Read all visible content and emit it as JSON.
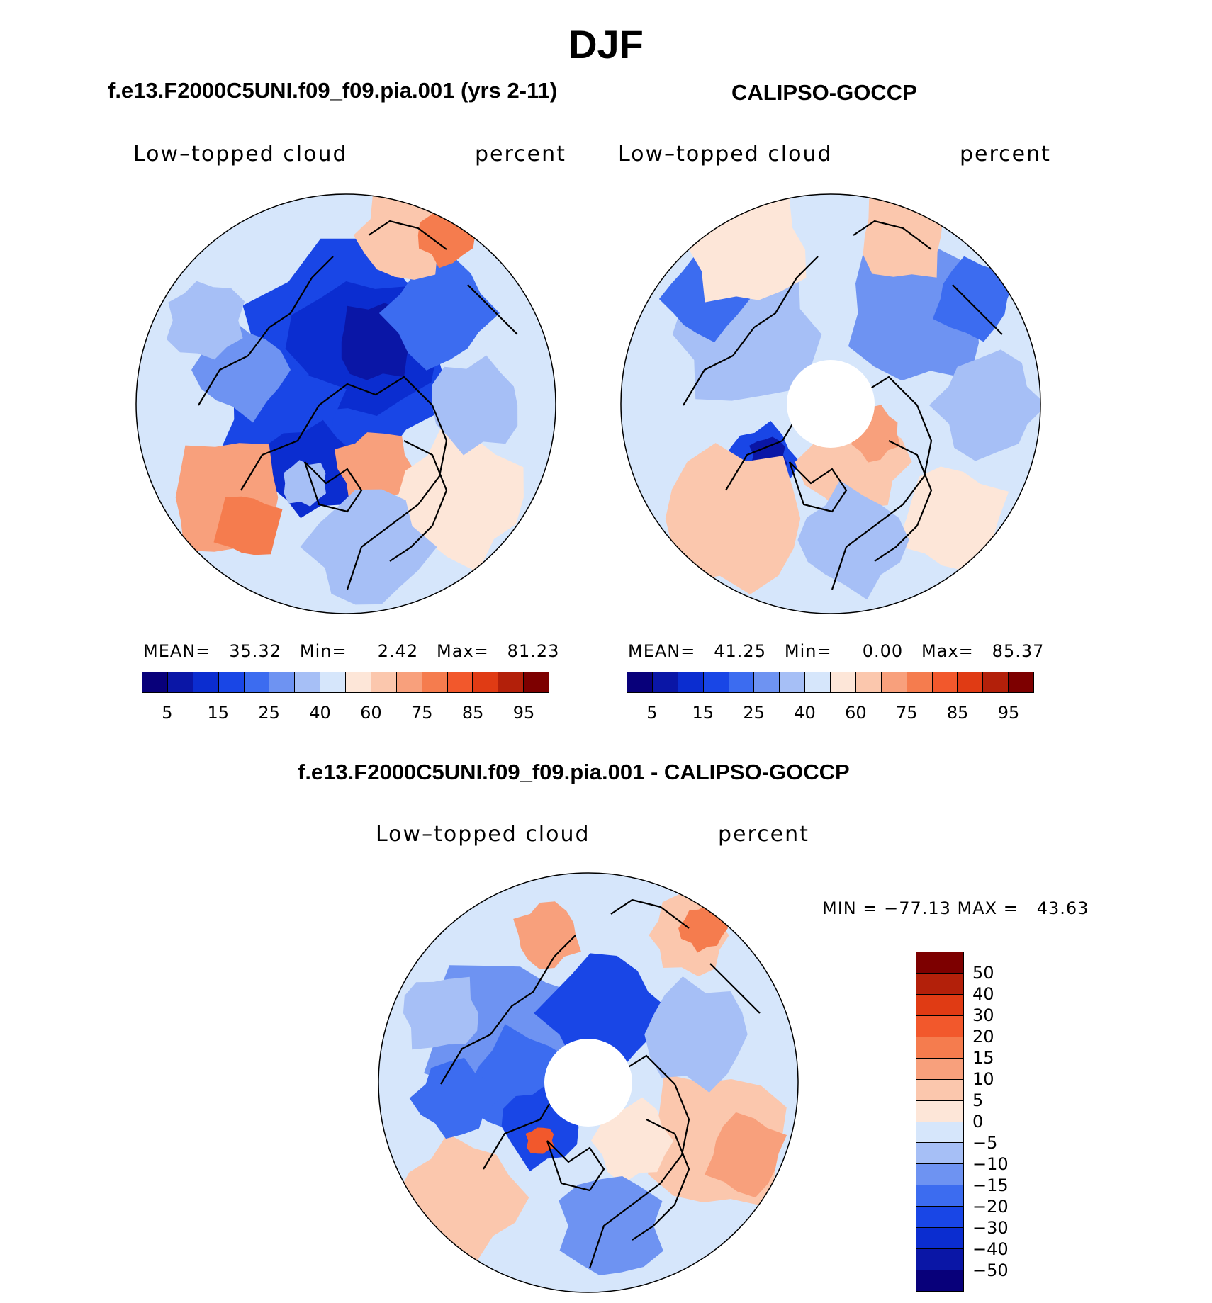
{
  "title": "DJF",
  "panels": [
    {
      "subtitle": "f.e13.F2000C5UNI.f09_f09.pia.001 (yrs 2-11)",
      "left_label": "Low–topped cloud",
      "right_label": "percent",
      "stats": {
        "mean_label": "MEAN=",
        "mean": "35.32",
        "min_label": "Min=",
        "min": "2.42",
        "max_label": "Max=",
        "max": "81.23"
      },
      "hole": false
    },
    {
      "subtitle": "CALIPSO-GOCCP",
      "left_label": "Low–topped cloud",
      "right_label": "percent",
      "stats": {
        "mean_label": "MEAN=",
        "mean": "41.25",
        "min_label": "Min=",
        "min": "0.00",
        "max_label": "Max=",
        "max": "85.37"
      },
      "hole": true
    },
    {
      "subtitle": "f.e13.F2000C5UNI.f09_f09.pia.001 - CALIPSO-GOCCP",
      "left_label": "Low–topped cloud",
      "right_label": "percent",
      "minmax": "MIN = −77.13 MAX =   43.63",
      "hole": true
    }
  ],
  "colorbar_abs": {
    "colors": [
      "#08007a",
      "#0a16a6",
      "#0b2dd0",
      "#1946e6",
      "#3c6cf0",
      "#6e93f2",
      "#a6bff6",
      "#d6e6fb",
      "#fde6d8",
      "#fbc7ad",
      "#f8a07c",
      "#f57c4e",
      "#f2582c",
      "#e03b14",
      "#b3200a",
      "#7d0000"
    ],
    "tick_labels": [
      "5",
      "15",
      "25",
      "40",
      "60",
      "75",
      "85",
      "95"
    ]
  },
  "colorbar_diff": {
    "colors": [
      "#7d0000",
      "#b3200a",
      "#e03b14",
      "#f2582c",
      "#f57c4e",
      "#f8a07c",
      "#fbc7ad",
      "#fde6d8",
      "#d6e6fb",
      "#a6bff6",
      "#6e93f2",
      "#3c6cf0",
      "#1946e6",
      "#0b2dd0",
      "#0a16a6",
      "#08007a"
    ],
    "tick_labels": [
      "50",
      "40",
      "30",
      "20",
      "15",
      "10",
      "5",
      "0",
      "−5",
      "−10",
      "−15",
      "−20",
      "−30",
      "−40",
      "−50"
    ]
  }
}
